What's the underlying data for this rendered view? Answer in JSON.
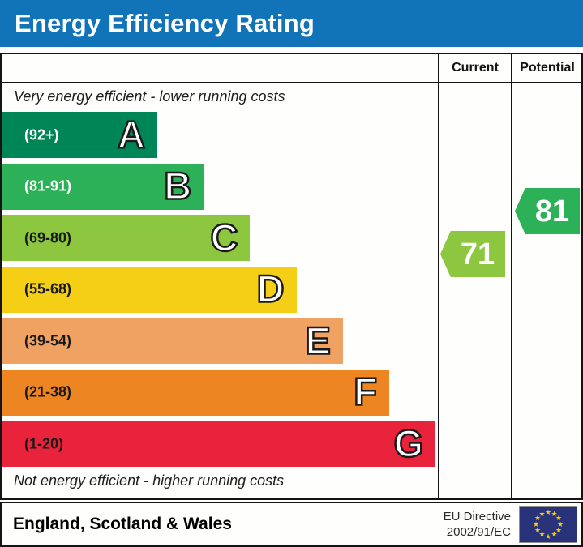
{
  "theme": {
    "title_bar_blue": "#1274b8",
    "table_border": "#141414"
  },
  "chart_data": {
    "type": "bar",
    "title": "Energy Efficiency Rating",
    "columns": [
      "Current",
      "Potential"
    ],
    "top_note": "Very energy efficient - lower running costs",
    "bottom_note": "Not energy efficient - higher running costs",
    "bands": [
      {
        "letter": "A",
        "range_label": "(92+)",
        "range": [
          92,
          100
        ],
        "color": "#008556",
        "label_color": "#ffffff"
      },
      {
        "letter": "B",
        "range_label": "(81-91)",
        "range": [
          81,
          91
        ],
        "color": "#2cb159",
        "label_color": "#ffffff"
      },
      {
        "letter": "C",
        "range_label": "(69-80)",
        "range": [
          69,
          80
        ],
        "color": "#8dc63f",
        "label_color": "#1a1a1a"
      },
      {
        "letter": "D",
        "range_label": "(55-68)",
        "range": [
          55,
          68
        ],
        "color": "#f5ce16",
        "label_color": "#1a1a1a"
      },
      {
        "letter": "E",
        "range_label": "(39-54)",
        "range": [
          39,
          54
        ],
        "color": "#f0a263",
        "label_color": "#1a1a1a"
      },
      {
        "letter": "F",
        "range_label": "(21-38)",
        "range": [
          21,
          38
        ],
        "color": "#ee8523",
        "label_color": "#1a1a1a"
      },
      {
        "letter": "G",
        "range_label": "(1-20)",
        "range": [
          1,
          20
        ],
        "color": "#e9233c",
        "label_color": "#1a1a1a"
      }
    ],
    "current": {
      "value": 71,
      "band": "C",
      "color": "#8dc63f"
    },
    "potential": {
      "value": 81,
      "band": "B",
      "color": "#2cb159"
    }
  },
  "header": {
    "current_label": "Current",
    "potential_label": "Potential"
  },
  "footer": {
    "region": "England, Scotland & Wales",
    "directive_line1": "EU Directive",
    "directive_line2": "2002/91/EC",
    "flag": {
      "blue": "#28337a",
      "star_color": "#ffcc00"
    }
  }
}
